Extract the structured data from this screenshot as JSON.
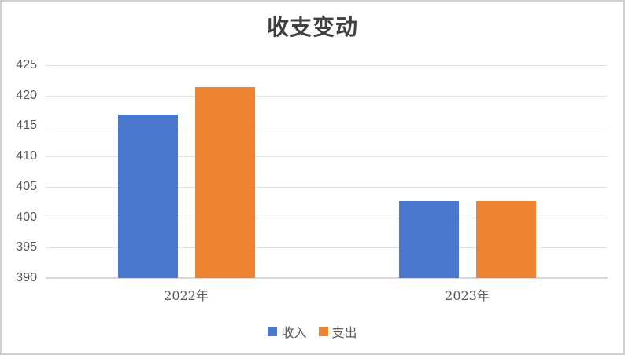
{
  "chart_data": {
    "type": "bar",
    "title": "收支变动",
    "categories": [
      "2022年",
      "2023年"
    ],
    "series": [
      {
        "key": "income",
        "name": "收入",
        "color": "#4a78cc",
        "values": [
          416.9,
          402.6
        ]
      },
      {
        "key": "expense",
        "name": "支出",
        "color": "#ee8331",
        "values": [
          421.4,
          402.6
        ]
      }
    ],
    "ylim": [
      390,
      425
    ],
    "yticks": [
      390,
      395,
      400,
      405,
      410,
      415,
      420,
      425
    ],
    "xlabel": "",
    "ylabel": "",
    "grid": true,
    "legend_position": "bottom"
  },
  "style": {
    "title_color": "#404040",
    "axis_text_color": "#595959",
    "gridline_color": "#e3e3e3",
    "axis_line_color": "#d8d8d8",
    "border_color": "#cfcfcf",
    "background": "#ffffff",
    "income_color": "#4a78cc",
    "expense_color": "#ee8331"
  }
}
